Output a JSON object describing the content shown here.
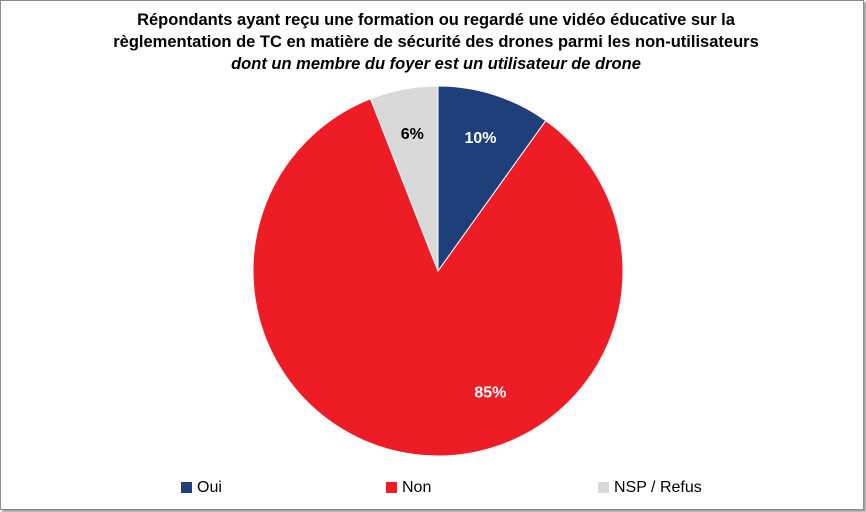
{
  "chart_data": {
    "type": "pie",
    "title": "Répondants ayant reçu une formation ou regardé une vidéo éducative sur la règlementation de TC en matière de sécurité des drones parmi les non-utilisateurs",
    "title_emphasis": "dont un membre du foyer est un utilisateur de drone",
    "categories": [
      "Oui",
      "Non",
      "NSP / Refus"
    ],
    "values": [
      10,
      85,
      6
    ],
    "value_labels": [
      "10%",
      "85%",
      "6%"
    ],
    "colors": [
      "#1f3f7a",
      "#ee1c25",
      "#d9d9d9"
    ],
    "label_colors": [
      "#ffffff",
      "#ffffff",
      "#000000"
    ],
    "legend": "bottom"
  }
}
